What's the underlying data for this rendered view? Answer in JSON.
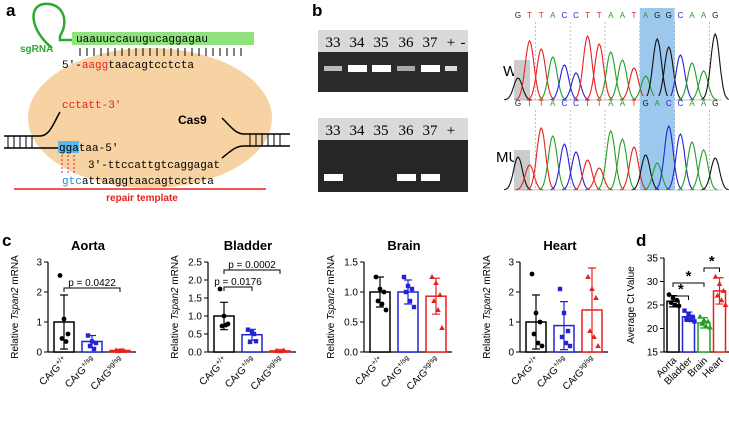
{
  "panel_a": {
    "label": "a",
    "sgrna_label": "sgRNA",
    "sgrna_seq": "uaauuccauugucaggagau",
    "target_top": [
      "5'-",
      "aagg",
      "taacagtcctcta"
    ],
    "left_strand": "cctatt-3'",
    "protein": "Cas9",
    "bottom_strand": [
      "gga",
      "taa-5'"
    ],
    "template_strand": "3'-ttccattgtcaggagat",
    "repair_seq": [
      "gtc",
      "attaaggtaacagtcctcta"
    ],
    "repair_label": "repair template"
  },
  "panel_b": {
    "label": "b",
    "gel_top_lanes": [
      "33",
      "34",
      "35",
      "36",
      "37",
      "+",
      "-"
    ],
    "gel_bottom_lanes": [
      "33",
      "34",
      "35",
      "36",
      "37",
      "+"
    ],
    "wt_label": "WT",
    "mut_label": "MUT",
    "wt_seq": [
      "G",
      "T",
      "T",
      "A",
      "C",
      "C",
      "T",
      "T",
      "A",
      "A",
      "T",
      "A",
      "G",
      "G",
      "C",
      "A",
      "A",
      "G"
    ],
    "mut_seq": [
      "G",
      "T",
      "T",
      "A",
      "C",
      "C",
      "T",
      "T",
      "A",
      "A",
      "T",
      "G",
      "A",
      "C",
      "C",
      "A",
      "A",
      "G"
    ]
  },
  "panel_c_label": "c",
  "panel_d_label": "d",
  "chart_data": [
    {
      "type": "bar",
      "title": "Aorta",
      "ylabel": [
        "Relative ",
        "Tspan2",
        " mRNA"
      ],
      "categories": [
        [
          "CArG",
          "+/+"
        ],
        [
          "CArG",
          "+/sg"
        ],
        [
          "CArG",
          "sg/sg"
        ]
      ],
      "colors": [
        "#000000",
        "#2323d6",
        "#e8211f"
      ],
      "values": [
        1.0,
        0.35,
        0.05
      ],
      "errors": [
        0.9,
        0.2,
        0.03
      ],
      "points": [
        [
          2.55,
          1.1,
          0.6,
          0.45,
          0.35
        ],
        [
          0.55,
          0.35,
          0.3,
          0.2,
          0.1
        ],
        [
          0.06,
          0.05,
          0.04,
          0.03,
          0.05
        ]
      ],
      "ylim": [
        0,
        3
      ],
      "yticks": [
        0,
        1,
        2,
        3
      ],
      "annotations": [
        "p = 0.0422"
      ]
    },
    {
      "type": "bar",
      "title": "Bladder",
      "ylabel": [
        "Relative ",
        "Tspan2",
        " mRNA"
      ],
      "categories": [
        [
          "CArG",
          "+/+"
        ],
        [
          "CArG",
          "+/sg"
        ],
        [
          "CArG",
          "sg/sg"
        ]
      ],
      "colors": [
        "#000000",
        "#2323d6",
        "#e8211f"
      ],
      "values": [
        1.0,
        0.48,
        0.03
      ],
      "errors": [
        0.38,
        0.15,
        0.02
      ],
      "points": [
        [
          1.75,
          1.0,
          0.78,
          0.72,
          0.75
        ],
        [
          0.62,
          0.55,
          0.3,
          0.28,
          0.5
        ],
        [
          0.03,
          0.02,
          0.04,
          0.03,
          0.03
        ]
      ],
      "ylim": [
        0,
        2.5
      ],
      "yticks": [
        {
          "value": 0,
          "label": "0.0"
        },
        {
          "value": 0.5,
          "label": "0.5"
        },
        {
          "value": 1,
          "label": "1.0"
        },
        {
          "value": 1.5,
          "label": "1.5"
        },
        {
          "value": 2,
          "label": "2.0"
        },
        {
          "value": 2.5,
          "label": "2.5"
        }
      ],
      "annotations": [
        "p = 0.0176",
        "p = 0.0002"
      ]
    },
    {
      "type": "bar",
      "title": "Brain",
      "ylabel": [
        "Relative ",
        "Tspan2",
        " mRNA"
      ],
      "categories": [
        [
          "CArG",
          "+/+"
        ],
        [
          "CArG",
          "+/sg"
        ],
        [
          "CArG",
          "sg/sg"
        ]
      ],
      "colors": [
        "#000000",
        "#2323d6",
        "#e8211f"
      ],
      "values": [
        1.0,
        1.0,
        0.93
      ],
      "errors": [
        0.25,
        0.2,
        0.3
      ],
      "points": [
        [
          1.25,
          1.05,
          1.0,
          0.85,
          0.8,
          0.7
        ],
        [
          1.25,
          1.1,
          1.05,
          1.0,
          0.85,
          0.75
        ],
        [
          1.25,
          1.15,
          0.95,
          0.85,
          0.7,
          0.4
        ]
      ],
      "ylim": [
        0,
        1.5
      ],
      "yticks": [
        {
          "value": 0,
          "label": "0.0"
        },
        {
          "value": 0.5,
          "label": "0.5"
        },
        {
          "value": 1,
          "label": "1.0"
        },
        {
          "value": 1.5,
          "label": "1.5"
        }
      ]
    },
    {
      "type": "bar",
      "title": "Heart",
      "ylabel": [
        "Relative ",
        "Tspan2",
        " mRNA"
      ],
      "categories": [
        [
          "CArG",
          "+/+"
        ],
        [
          "CArG",
          "+/sg"
        ],
        [
          "CArG",
          "sg/sg"
        ]
      ],
      "colors": [
        "#000000",
        "#2323d6",
        "#e8211f"
      ],
      "values": [
        1.0,
        0.88,
        1.4
      ],
      "errors": [
        0.9,
        0.8,
        1.4
      ],
      "points": [
        [
          2.6,
          1.3,
          1.0,
          0.6,
          0.3,
          0.2
        ],
        [
          2.1,
          1.3,
          0.7,
          0.5,
          0.3,
          0.2
        ],
        [
          2.5,
          2.1,
          1.8,
          0.7,
          0.5,
          0.2
        ]
      ],
      "ylim": [
        0,
        3
      ],
      "yticks": [
        0,
        1,
        2,
        3
      ]
    },
    {
      "type": "bar",
      "ylabel": [
        "Average Ct Value"
      ],
      "categories": [
        "Aorta",
        "Bladder",
        "Brain",
        "Heart"
      ],
      "colors": [
        "#000000",
        "#2323d6",
        "#22a022",
        "#e8211f"
      ],
      "values": [
        25.8,
        22.5,
        21.2,
        28
      ],
      "errors": [
        1.2,
        1.0,
        1.1,
        2.8
      ],
      "points": [
        [
          27.2,
          26.5,
          26,
          25.5,
          25,
          24.8
        ],
        [
          23.8,
          23,
          22.5,
          22,
          21.8,
          21.5
        ],
        [
          22.5,
          21.8,
          21.5,
          21,
          20.5,
          20.2
        ],
        [
          31,
          29.5,
          28,
          27,
          26,
          25
        ]
      ],
      "ylim": [
        15,
        35
      ],
      "yticks": [
        15,
        20,
        25,
        30,
        35
      ],
      "annotations": [
        "*",
        "*",
        "*"
      ]
    }
  ]
}
